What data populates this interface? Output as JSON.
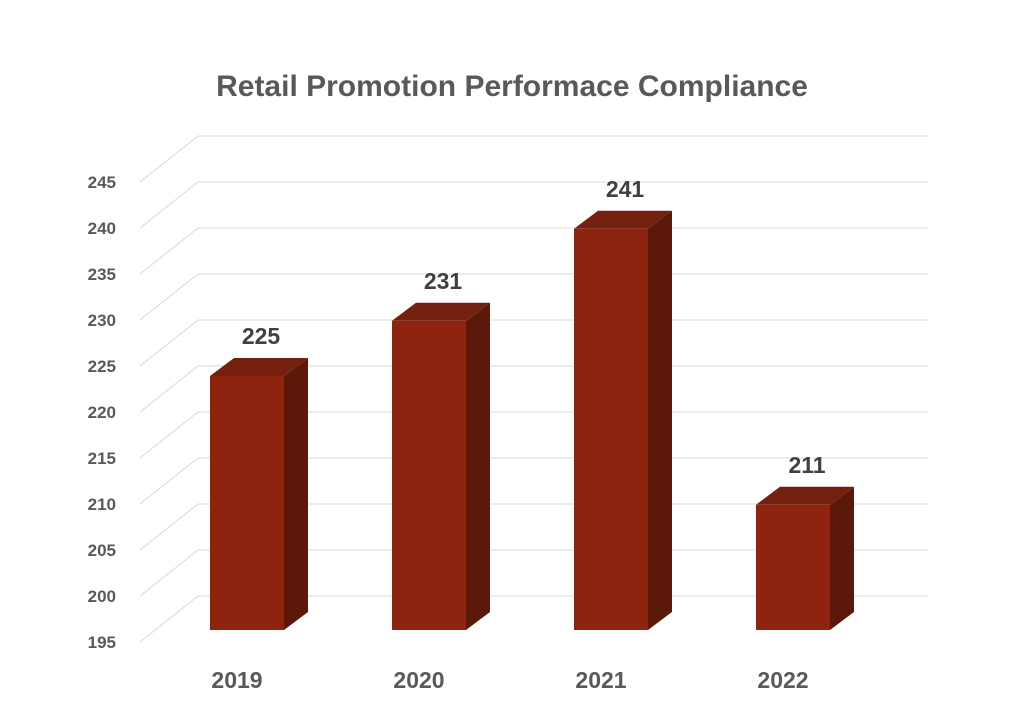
{
  "chart_data": {
    "type": "bar",
    "title": "Retail Promotion Performace Compliance",
    "xlabel": "",
    "ylabel": "",
    "categories": [
      "2019",
      "2020",
      "2021",
      "2022"
    ],
    "values": [
      225,
      231,
      241,
      211
    ],
    "data_labels": [
      "225",
      "231",
      "241",
      "211"
    ],
    "ylim": [
      195,
      245
    ],
    "yticks": [
      "195",
      "200",
      "205",
      "210",
      "215",
      "220",
      "225",
      "230",
      "235",
      "240",
      "245"
    ],
    "grid": true,
    "legend": "none",
    "style": "3d-column",
    "colors": {
      "bar_front": "#8e2410",
      "bar_top": "#74200e",
      "bar_side": "#5c1909",
      "grid": "#d9d9d9",
      "tick_text": "#595959",
      "label_text": "#404040"
    }
  }
}
